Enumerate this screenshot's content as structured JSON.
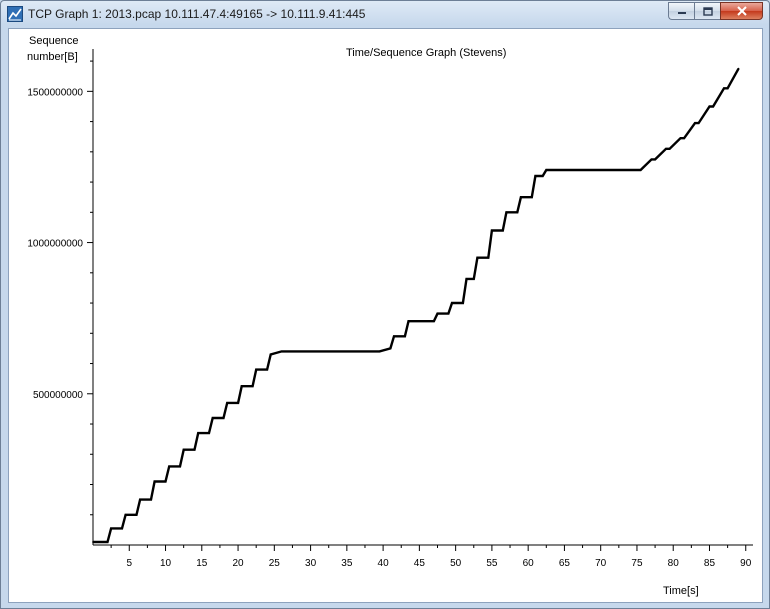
{
  "window": {
    "title": "TCP Graph 1: 2013.pcap 10.111.47.4:49165 -> 10.111.9.41:445",
    "icon": "wireshark-graph-icon",
    "controls": [
      "minimize",
      "maximize",
      "close"
    ]
  },
  "chart_data": {
    "type": "line",
    "title": "Time/Sequence Graph (Stevens)",
    "ylabel_line1": "Sequence",
    "ylabel_line2": "number[B]",
    "xlabel": "Time[s]",
    "xlim": [
      0,
      91
    ],
    "ylim": [
      0,
      1640000000
    ],
    "x_ticks": [
      5,
      10,
      15,
      20,
      25,
      30,
      35,
      40,
      45,
      50,
      55,
      60,
      65,
      70,
      75,
      80,
      85,
      90
    ],
    "x_tick_labels": [
      "5",
      "10",
      "15",
      "20",
      "25",
      "30",
      "35",
      "40",
      "45",
      "50",
      "55",
      "60",
      "65",
      "70",
      "75",
      "80",
      "85",
      "90"
    ],
    "y_ticks": [
      500000000,
      1000000000,
      1500000000
    ],
    "y_tick_labels": [
      "500000000",
      "1000000000",
      "1500000000"
    ],
    "grid": false,
    "legend": "none",
    "line_color": "#000000",
    "series": [
      {
        "x": [
          0,
          2,
          2.5,
          4,
          4.5,
          6,
          6.5,
          8,
          8.5,
          10,
          10.5,
          12,
          12.5,
          14,
          14.5,
          16,
          16.5,
          18,
          18.5,
          20,
          20.5,
          22,
          22.5,
          24,
          24.5,
          26,
          39.5,
          41,
          41.5,
          43,
          43.5,
          47,
          47.5,
          49,
          49.5,
          51,
          51.5,
          52.5,
          53,
          54.5,
          55,
          56.5,
          57,
          58.5,
          59,
          60.5,
          61,
          62,
          62.5,
          64,
          75.5,
          77,
          77.5,
          79,
          79.5,
          81,
          81.5,
          83,
          83.5,
          85,
          85.5,
          87,
          87.5,
          89
        ],
        "y": [
          10000000,
          10000000,
          55000000,
          55000000,
          100000000,
          100000000,
          150000000,
          150000000,
          210000000,
          210000000,
          260000000,
          260000000,
          315000000,
          315000000,
          370000000,
          370000000,
          420000000,
          420000000,
          470000000,
          470000000,
          525000000,
          525000000,
          580000000,
          580000000,
          630000000,
          640000000,
          640000000,
          650000000,
          690000000,
          690000000,
          740000000,
          740000000,
          765000000,
          765000000,
          800000000,
          800000000,
          880000000,
          880000000,
          950000000,
          950000000,
          1040000000,
          1040000000,
          1100000000,
          1100000000,
          1150000000,
          1150000000,
          1220000000,
          1220000000,
          1240000000,
          1240000000,
          1240000000,
          1275000000,
          1275000000,
          1310000000,
          1310000000,
          1345000000,
          1345000000,
          1395000000,
          1395000000,
          1450000000,
          1450000000,
          1510000000,
          1510000000,
          1575000000
        ]
      }
    ]
  }
}
